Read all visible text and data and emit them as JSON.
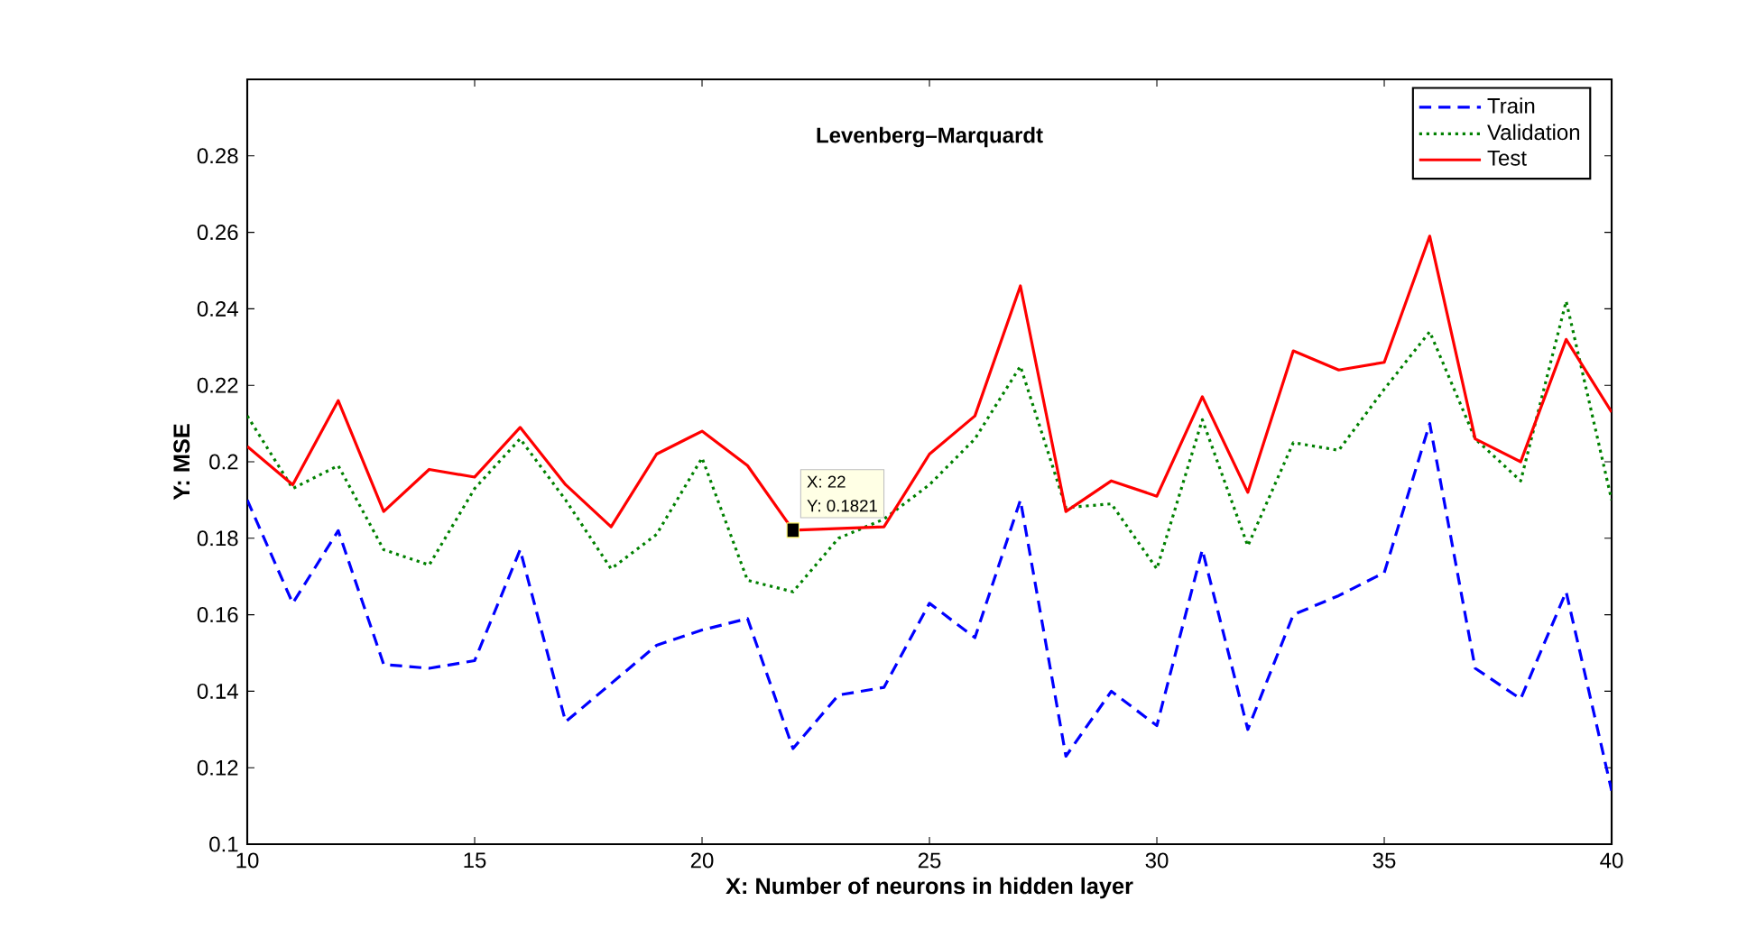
{
  "chart_data": {
    "type": "line",
    "title": "Levenberg–Marquardt",
    "xlabel": "X: Number of neurons in hidden layer",
    "ylabel": "Y: MSE",
    "x": [
      10,
      11,
      12,
      13,
      14,
      15,
      16,
      17,
      18,
      19,
      20,
      21,
      22,
      23,
      24,
      25,
      26,
      27,
      28,
      29,
      30,
      31,
      32,
      33,
      34,
      35,
      36,
      37,
      38,
      39,
      40
    ],
    "series": [
      {
        "name": "Train",
        "color": "#0000ff",
        "line_style": "dashed",
        "values": [
          0.19,
          0.163,
          0.182,
          0.147,
          0.146,
          0.148,
          0.177,
          0.132,
          0.142,
          0.152,
          0.156,
          0.159,
          0.125,
          0.139,
          0.141,
          0.163,
          0.154,
          0.19,
          0.123,
          0.14,
          0.131,
          0.177,
          0.13,
          0.16,
          0.165,
          0.171,
          0.21,
          0.146,
          0.138,
          0.166,
          0.114
        ]
      },
      {
        "name": "Validation",
        "color": "#008000",
        "line_style": "dotted",
        "values": [
          0.212,
          0.193,
          0.199,
          0.177,
          0.173,
          0.193,
          0.206,
          0.19,
          0.172,
          0.181,
          0.201,
          0.169,
          0.166,
          0.18,
          0.185,
          0.194,
          0.206,
          0.225,
          0.188,
          0.189,
          0.172,
          0.211,
          0.178,
          0.205,
          0.203,
          0.219,
          0.234,
          0.206,
          0.195,
          0.242,
          0.19
        ]
      },
      {
        "name": "Test",
        "color": "#ff0000",
        "line_style": "solid",
        "values": [
          0.204,
          0.194,
          0.216,
          0.187,
          0.198,
          0.196,
          0.209,
          0.194,
          0.183,
          0.202,
          0.208,
          0.199,
          0.1821,
          null,
          0.183,
          0.202,
          0.212,
          0.246,
          0.187,
          0.195,
          0.191,
          0.217,
          0.192,
          0.229,
          0.224,
          0.226,
          0.259,
          0.206,
          0.2,
          0.232,
          0.213
        ]
      }
    ],
    "xlim": [
      10,
      40
    ],
    "ylim": [
      0.1,
      0.3
    ],
    "xticks": [
      10,
      15,
      20,
      25,
      30,
      35,
      40
    ],
    "yticks": [
      0.1,
      0.12,
      0.14,
      0.16,
      0.18,
      0.2,
      0.22,
      0.24,
      0.26,
      0.28
    ],
    "legend": "top right",
    "grid": false,
    "marker": "none",
    "annotations": [
      {
        "text": "X: 22",
        "x": 22,
        "y": 0.1821
      },
      {
        "text": "Y: 0.1821",
        "x": 22,
        "y": 0.1821
      }
    ]
  }
}
